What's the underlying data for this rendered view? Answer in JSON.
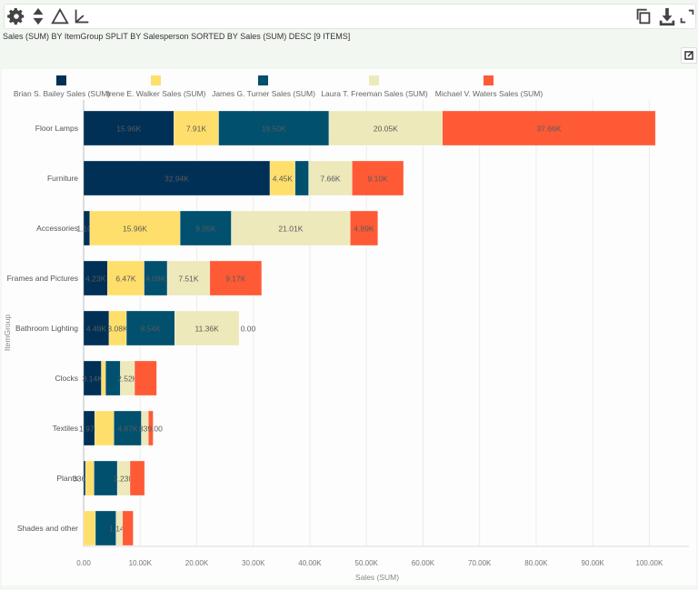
{
  "toolbar": {
    "left_icons": [
      "gear-icon",
      "sort-icon",
      "triangle-icon",
      "axis-icon"
    ],
    "right_icons": [
      "copy-icon",
      "download-icon",
      "expand-icon"
    ]
  },
  "subtitle": "Sales (SUM) BY ItemGroup SPLIT BY Salesperson SORTED BY Sales (SUM) DESC [9 ITEMS]",
  "chart_data": {
    "type": "bar",
    "orientation": "horizontal",
    "stacked": true,
    "title": "",
    "xlabel": "Sales (SUM)",
    "ylabel": "ItemGroup",
    "xlim": [
      0,
      107000
    ],
    "x_ticks": [
      0,
      10000,
      20000,
      30000,
      40000,
      50000,
      60000,
      70000,
      80000,
      90000,
      100000
    ],
    "x_tick_labels": [
      "0.00",
      "10.00K",
      "20.00K",
      "30.00K",
      "40.00K",
      "50.00K",
      "60.00K",
      "70.00K",
      "80.00K",
      "90.00K",
      "100.00K"
    ],
    "grid": true,
    "legend_placement": "top",
    "categories": [
      "Floor Lamps",
      "Furniture",
      "Accessories",
      "Frames and Pictures",
      "Bathroom Lighting",
      "Clocks",
      "Textiles",
      "Plants",
      "Shades and other"
    ],
    "series": [
      {
        "name": "Brian S. Bailey Sales (SUM)",
        "color": "#003056",
        "values": [
          15960,
          32940,
          1100,
          4230,
          4490,
          3140,
          1970,
          336.8,
          0
        ],
        "labels": [
          "15.96K",
          "32.94K",
          "1.10K",
          "4.23K",
          "4.49K",
          "3.14K",
          "1.97K",
          "336.80",
          "0.00"
        ]
      },
      {
        "name": "Irene E. Walker Sales (SUM)",
        "color": "#ffdf6b",
        "values": [
          7910,
          4450,
          15960,
          6470,
          3080,
          750,
          3380,
          1500,
          2090
        ],
        "labels": [
          "7.91K",
          "4.45K",
          "15.96K",
          "6.47K",
          "3.08K",
          "",
          "",
          "",
          ""
        ]
      },
      {
        "name": "James G. Turner Sales (SUM)",
        "color": "#00506e",
        "values": [
          19500,
          2400,
          9050,
          4090,
          8540,
          2600,
          4870,
          4130,
          3650
        ],
        "labels": [
          "19.50K",
          "",
          "9.05K",
          "4.09K",
          "8.54K",
          "",
          "4.87K",
          "",
          ""
        ]
      },
      {
        "name": "Laura T. Freeman Sales (SUM)",
        "color": "#ede9bb",
        "values": [
          20050,
          7660,
          21010,
          7510,
          11360,
          2520,
          1230,
          2230,
          1140
        ],
        "labels": [
          "20.05K",
          "7.66K",
          "21.01K",
          "7.51K",
          "11.36K",
          "2.52K",
          "",
          "2.23K",
          "1.14K"
        ]
      },
      {
        "name": "Michael V. Waters Sales (SUM)",
        "color": "#ff5a36",
        "values": [
          37660,
          9100,
          4890,
          9170,
          0,
          3900,
          839,
          2580,
          1880
        ],
        "labels": [
          "37.66K",
          "9.10K",
          "4.89K",
          "9.17K",
          "0.00",
          "",
          "839.00",
          "",
          ""
        ]
      }
    ]
  }
}
